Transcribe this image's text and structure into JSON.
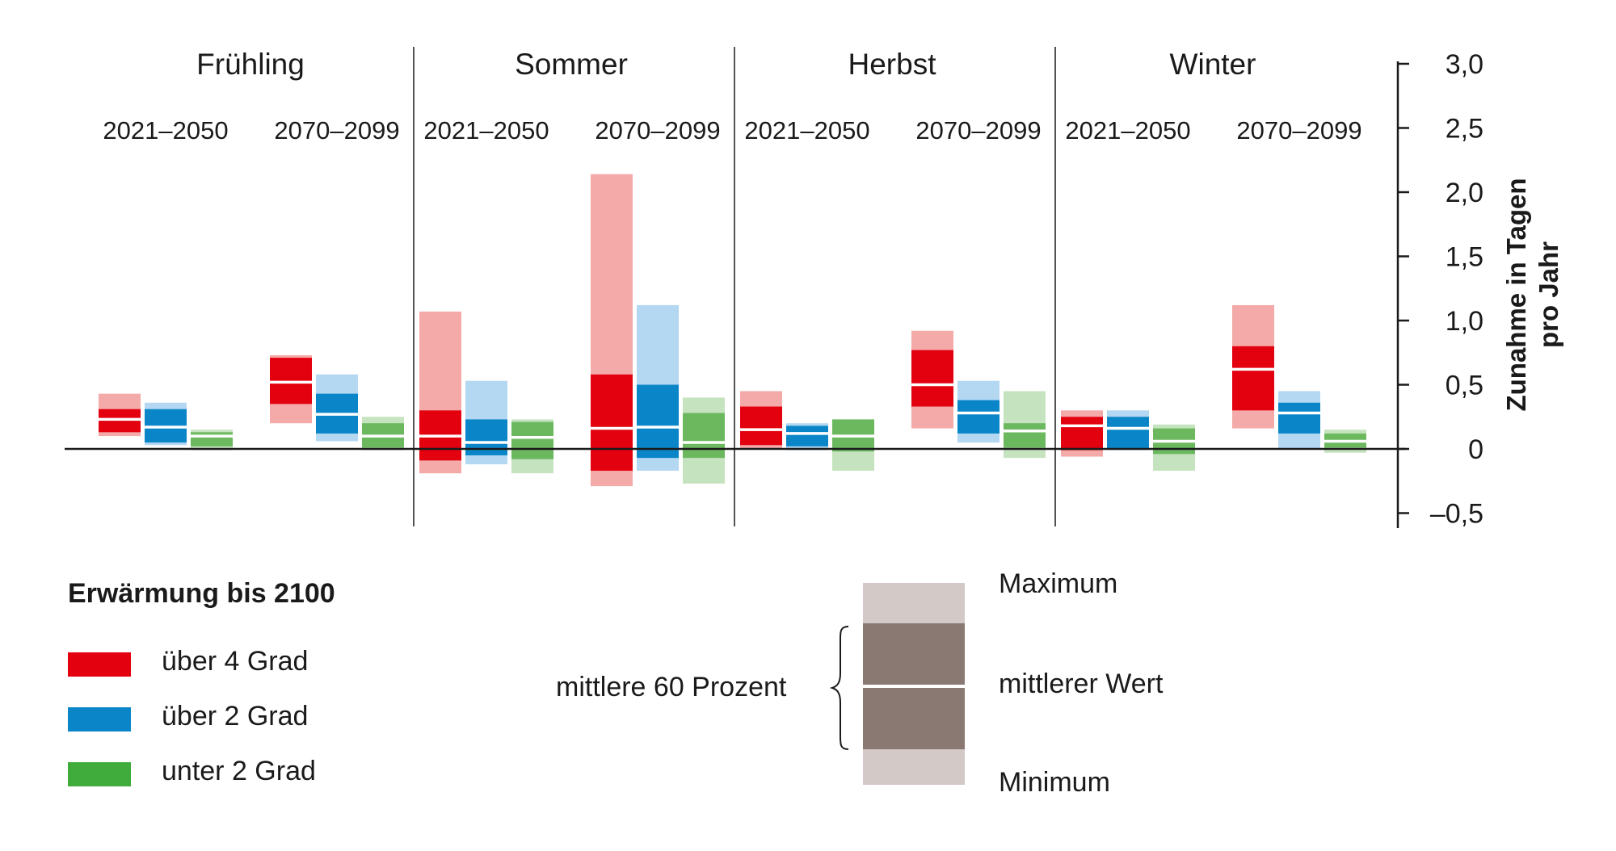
{
  "chart_data": {
    "type": "floating-bar",
    "seasons": [
      "Frühling",
      "Sommer",
      "Herbst",
      "Winter"
    ],
    "periods": [
      "2021–2050",
      "2070–2099"
    ],
    "y_axis": {
      "label_line1": "Zunahme in Tagen",
      "label_line2": "pro Jahr",
      "ylim": [
        -0.5,
        3.0
      ],
      "ticks": [
        3.0,
        2.5,
        2.0,
        1.5,
        1.0,
        0.5,
        0,
        -0.5
      ],
      "tick_labels": [
        "3,0",
        "2,5",
        "2,0",
        "1,5",
        "1,0",
        "0,5",
        "0",
        "–0,5"
      ]
    },
    "legend": {
      "title": "Erwärmung bis 2100",
      "items": [
        {
          "label": "über 4 Grad",
          "color": "#e3000f"
        },
        {
          "label": "über 2 Grad",
          "color": "#0a86c8"
        },
        {
          "label": "unter 2 Grad",
          "color": "#3fac3b"
        }
      ]
    },
    "key": {
      "maximum": "Maximum",
      "median": "mittlerer Wert",
      "minimum": "Minimum",
      "range": "mittlere 60 Prozent"
    },
    "series_colors": {
      "red": {
        "dark": "#e3000f",
        "light": "#f4aaa9"
      },
      "blue": {
        "dark": "#0a86c8",
        "light": "#b4d7f2"
      },
      "green": {
        "dark": "#6bb85f",
        "light": "#c6e3bf"
      }
    },
    "groups": [
      {
        "season": "Frühling",
        "period": "2021–2050",
        "bars": [
          {
            "series": "red",
            "min": 0.1,
            "q20": 0.13,
            "median": 0.23,
            "q80": 0.31,
            "max": 0.43
          },
          {
            "series": "blue",
            "min": 0.03,
            "q20": 0.05,
            "median": 0.17,
            "q80": 0.31,
            "max": 0.36
          },
          {
            "series": "green",
            "min": -0.01,
            "q20": 0.02,
            "median": 0.1,
            "q80": 0.13,
            "max": 0.15
          }
        ]
      },
      {
        "season": "Frühling",
        "period": "2070–2099",
        "bars": [
          {
            "series": "red",
            "min": 0.2,
            "q20": 0.35,
            "median": 0.52,
            "q80": 0.71,
            "max": 0.73
          },
          {
            "series": "blue",
            "min": 0.06,
            "q20": 0.12,
            "median": 0.27,
            "q80": 0.43,
            "max": 0.58
          },
          {
            "series": "green",
            "min": -0.01,
            "q20": 0.01,
            "median": 0.1,
            "q80": 0.2,
            "max": 0.25
          }
        ]
      },
      {
        "season": "Sommer",
        "period": "2021–2050",
        "bars": [
          {
            "series": "red",
            "min": -0.19,
            "q20": -0.09,
            "median": 0.1,
            "q80": 0.3,
            "max": 1.07
          },
          {
            "series": "blue",
            "min": -0.12,
            "q20": -0.05,
            "median": 0.05,
            "q80": 0.23,
            "max": 0.53
          },
          {
            "series": "green",
            "min": -0.19,
            "q20": -0.08,
            "median": 0.09,
            "q80": 0.21,
            "max": 0.23
          }
        ]
      },
      {
        "season": "Sommer",
        "period": "2070–2099",
        "bars": [
          {
            "series": "red",
            "min": -0.29,
            "q20": -0.17,
            "median": 0.16,
            "q80": 0.58,
            "max": 2.14
          },
          {
            "series": "blue",
            "min": -0.17,
            "q20": -0.07,
            "median": 0.17,
            "q80": 0.5,
            "max": 1.12
          },
          {
            "series": "green",
            "min": -0.27,
            "q20": -0.07,
            "median": 0.05,
            "q80": 0.28,
            "max": 0.4
          }
        ]
      },
      {
        "season": "Herbst",
        "period": "2021–2050",
        "bars": [
          {
            "series": "red",
            "min": 0.0,
            "q20": 0.03,
            "median": 0.15,
            "q80": 0.33,
            "max": 0.45
          },
          {
            "series": "blue",
            "min": -0.01,
            "q20": 0.02,
            "median": 0.12,
            "q80": 0.18,
            "max": 0.2
          },
          {
            "series": "green",
            "min": -0.17,
            "q20": -0.02,
            "median": 0.1,
            "q80": 0.23,
            "max": 0.23
          }
        ]
      },
      {
        "season": "Herbst",
        "period": "2070–2099",
        "bars": [
          {
            "series": "red",
            "min": 0.16,
            "q20": 0.33,
            "median": 0.5,
            "q80": 0.77,
            "max": 0.92
          },
          {
            "series": "blue",
            "min": 0.05,
            "q20": 0.12,
            "median": 0.28,
            "q80": 0.38,
            "max": 0.53
          },
          {
            "series": "green",
            "min": -0.07,
            "q20": 0.01,
            "median": 0.14,
            "q80": 0.2,
            "max": 0.45
          }
        ]
      },
      {
        "season": "Winter",
        "period": "2021–2050",
        "bars": [
          {
            "series": "red",
            "min": -0.06,
            "q20": -0.01,
            "median": 0.18,
            "q80": 0.25,
            "max": 0.3
          },
          {
            "series": "blue",
            "min": -0.01,
            "q20": 0.0,
            "median": 0.16,
            "q80": 0.25,
            "max": 0.3
          },
          {
            "series": "green",
            "min": -0.17,
            "q20": -0.04,
            "median": 0.06,
            "q80": 0.16,
            "max": 0.19
          }
        ]
      },
      {
        "season": "Winter",
        "period": "2070–2099",
        "bars": [
          {
            "series": "red",
            "min": 0.16,
            "q20": 0.3,
            "median": 0.62,
            "q80": 0.8,
            "max": 1.12
          },
          {
            "series": "blue",
            "min": 0.0,
            "q20": 0.12,
            "median": 0.28,
            "q80": 0.36,
            "max": 0.45
          },
          {
            "series": "green",
            "min": -0.03,
            "q20": 0.01,
            "median": 0.06,
            "q80": 0.12,
            "max": 0.15
          }
        ]
      }
    ]
  }
}
